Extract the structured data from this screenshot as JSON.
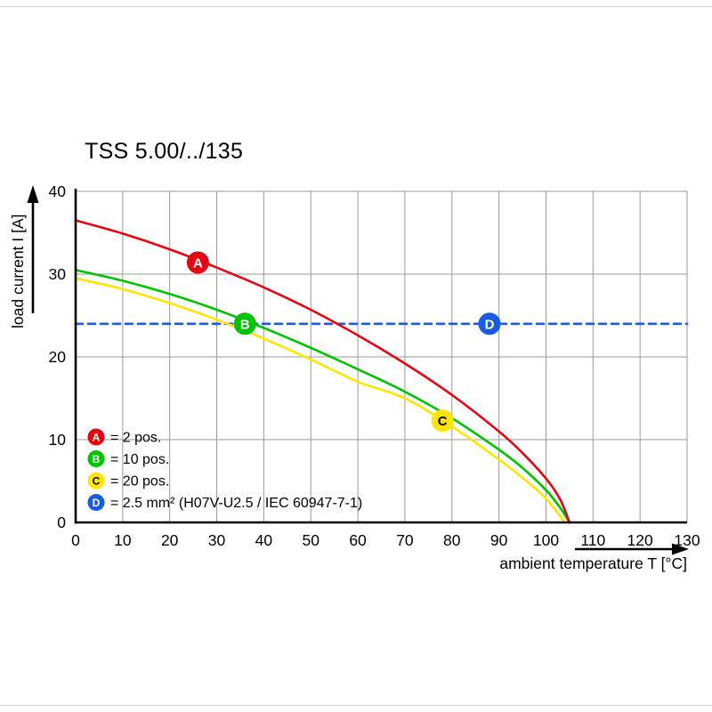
{
  "chart_data": {
    "type": "line",
    "title": "TSS 5.00/../135",
    "xlabel": "ambient temperature T [°C]",
    "ylabel": "load current I [A]",
    "xlim": [
      0,
      130
    ],
    "ylim": [
      0,
      40
    ],
    "xticks": [
      0,
      10,
      20,
      30,
      40,
      50,
      60,
      70,
      80,
      90,
      100,
      110,
      120,
      130
    ],
    "yticks": [
      0,
      10,
      20,
      30,
      40
    ],
    "grid": true,
    "colors": {
      "axis": "#000000",
      "grid": "#999999",
      "background": "#ffffff"
    },
    "series": [
      {
        "key": "A",
        "label": "2 pos.",
        "color": "#e30613",
        "line_style": "solid",
        "marker_text_color": "#ffffff",
        "points": [
          [
            0,
            36.5
          ],
          [
            10,
            34.9
          ],
          [
            20,
            33.0
          ],
          [
            30,
            30.8
          ],
          [
            40,
            28.4
          ],
          [
            50,
            25.7
          ],
          [
            60,
            22.6
          ],
          [
            70,
            19.2
          ],
          [
            80,
            15.4
          ],
          [
            90,
            11.0
          ],
          [
            95,
            8.4
          ],
          [
            100,
            5.3
          ],
          [
            103,
            2.8
          ],
          [
            105,
            0
          ]
        ]
      },
      {
        "key": "B",
        "label": "10 pos.",
        "color": "#00c300",
        "line_style": "solid",
        "marker_text_color": "#ffffff",
        "points": [
          [
            0,
            30.5
          ],
          [
            10,
            29.2
          ],
          [
            20,
            27.6
          ],
          [
            30,
            25.7
          ],
          [
            40,
            23.5
          ],
          [
            50,
            21.1
          ],
          [
            60,
            18.5
          ],
          [
            70,
            15.8
          ],
          [
            80,
            12.6
          ],
          [
            90,
            8.8
          ],
          [
            95,
            6.6
          ],
          [
            100,
            3.9
          ],
          [
            103,
            1.8
          ],
          [
            105,
            0
          ]
        ]
      },
      {
        "key": "C",
        "label": "20 pos.",
        "color": "#ffe600",
        "line_style": "solid",
        "marker_text_color": "#000000",
        "points": [
          [
            0,
            29.5
          ],
          [
            10,
            28.2
          ],
          [
            20,
            26.5
          ],
          [
            30,
            24.5
          ],
          [
            40,
            22.2
          ],
          [
            50,
            19.7
          ],
          [
            60,
            17.0
          ],
          [
            70,
            15.0
          ],
          [
            80,
            11.6
          ],
          [
            90,
            7.6
          ],
          [
            95,
            5.4
          ],
          [
            100,
            2.9
          ],
          [
            104,
            0
          ]
        ]
      },
      {
        "key": "D",
        "label": "2.5 mm² (H07V-U2.5 / IEC 60947-7-1)",
        "color": "#1a5ce0",
        "line_style": "dashed",
        "marker_text_color": "#ffffff",
        "points": [
          [
            0,
            24
          ],
          [
            130,
            24
          ]
        ]
      }
    ],
    "markers": [
      {
        "series": "A",
        "x": 26,
        "y": 31.4
      },
      {
        "series": "B",
        "x": 36,
        "y": 24
      },
      {
        "series": "C",
        "x": 78,
        "y": 12.3
      },
      {
        "series": "D",
        "x": 88,
        "y": 24
      }
    ],
    "legend": {
      "position": "inside-bottom-left",
      "items": [
        {
          "series": "A",
          "text": "= 2 pos."
        },
        {
          "series": "B",
          "text": "= 10 pos."
        },
        {
          "series": "C",
          "text": "= 20 pos."
        },
        {
          "series": "D",
          "text": "= 2.5 mm² (H07V-U2.5 / IEC 60947-7-1)"
        }
      ]
    }
  }
}
